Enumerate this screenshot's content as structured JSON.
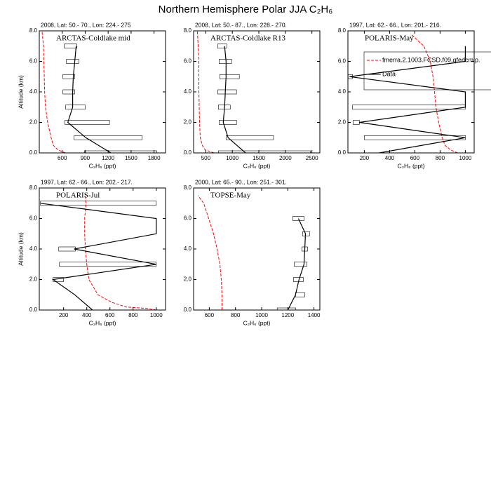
{
  "title": "Northern Hemisphere Polar JJA C₂H₆",
  "chart_data": [
    {
      "type": "line",
      "subtitle": "2008, Lat:  50.- 70., Lon: 224.- 275",
      "annotation": "ARCTAS-Coldlake mid",
      "xlabel": "C₂H₆ (ppt)",
      "ylabel": "Altitude (km)",
      "xlim": [
        300,
        1950
      ],
      "xticks": [
        600,
        900,
        1200,
        1500,
        1800
      ],
      "ylim": [
        0,
        8
      ],
      "yticks": [
        {
          "value": 0,
          "label": "0.0"
        },
        {
          "value": 2,
          "label": "2.0"
        },
        {
          "value": 4,
          "label": "4.0"
        },
        {
          "value": 6,
          "label": "6.0"
        },
        {
          "value": 8,
          "label": "8.0"
        }
      ],
      "series": [
        {
          "color": "#ff0000",
          "dash": true,
          "x": [
            645,
            545,
            482,
            455,
            409,
            382,
            370,
            365,
            360,
            355,
            336
          ],
          "y": [
            0,
            0.2,
            0.5,
            1,
            2,
            3,
            4,
            5,
            6,
            7,
            8
          ]
        },
        {
          "color": "#000000",
          "x": [
            1236,
            909,
            673,
            736,
            736,
            745,
            764,
            782
          ],
          "y": [
            0,
            1,
            2,
            3,
            4,
            5,
            6,
            7
          ],
          "low": [
            891,
            755,
            636,
            645,
            609,
            609,
            655,
            627
          ],
          "high": [
            1836,
            1645,
            1218,
            900,
            764,
            764,
            818,
            791
          ]
        }
      ]
    },
    {
      "type": "line",
      "subtitle": "2008, Lat:  50.- 87., Lon: 228.- 270.",
      "annotation": "ARCTAS-Coldlake R13",
      "xlabel": "C₂H₆ (ppt)",
      "xlim": [
        270,
        2650
      ],
      "xticks": [
        500,
        1000,
        1500,
        2000,
        2500
      ],
      "ylim": [
        0,
        8
      ],
      "yticks": [
        {
          "value": 0,
          "label": "0.0"
        },
        {
          "value": 2,
          "label": "2.0"
        },
        {
          "value": 4,
          "label": "4.0"
        },
        {
          "value": 6,
          "label": "6.0"
        },
        {
          "value": 8,
          "label": "8.0"
        }
      ],
      "series": [
        {
          "color": "#ff0000",
          "dash": true,
          "x": [
            658,
            487,
            434,
            395,
            382,
            369,
            369,
            356,
            342
          ],
          "y": [
            0,
            0.2,
            0.5,
            1,
            2,
            4,
            6,
            7,
            8
          ]
        },
        {
          "color": "#000000",
          "x": [
            1250,
            921,
            829,
            855,
            868,
            882,
            882,
            855
          ],
          "y": [
            0,
            1,
            2,
            3,
            4,
            5,
            6,
            7
          ],
          "low": [
            737,
            882,
            750,
            737,
            724,
            763,
            750,
            724
          ],
          "high": [
            2474,
            1777,
            1079,
            961,
            1079,
            1132,
            987,
            895
          ]
        }
      ]
    },
    {
      "type": "line",
      "subtitle": "1997, Lat: 62.- 66., Lon: 201.- 216.",
      "annotation": "POLARIS-May",
      "xlabel": "C₂H₆ (ppt)",
      "xlim": [
        70,
        1070
      ],
      "xticks": [
        200,
        400,
        600,
        800,
        1000
      ],
      "ylim": [
        0,
        8
      ],
      "yticks": [
        {
          "value": 0,
          "label": "0.0"
        },
        {
          "value": 2,
          "label": "2.0"
        },
        {
          "value": 4,
          "label": "4.0"
        },
        {
          "value": 6,
          "label": "6.0"
        },
        {
          "value": 8,
          "label": "8.0"
        }
      ],
      "legend": "upper right",
      "series": [
        {
          "name": "fmerra.2.1003.FCSD.f09.qfedcmip.",
          "color": "#ff0000",
          "dash": true,
          "x": [
            939,
            883,
            839,
            817,
            789,
            767,
            756,
            744,
            722,
            672,
            567
          ],
          "y": [
            0,
            0.2,
            0.5,
            1,
            2,
            3,
            4,
            5,
            6,
            7,
            7.8
          ]
        },
        {
          "name": "Data",
          "color": "#000000",
          "x": [
            317,
            1000,
            161,
            1000,
            1000,
            83,
            1000,
            1000
          ],
          "y": [
            0,
            1,
            2,
            3,
            4,
            5,
            6,
            7
          ],
          "low": [
            null,
            200,
            111,
            106,
            null,
            72,
            null,
            null
          ],
          "high": [
            null,
            1000,
            161,
            1000,
            null,
            106,
            null,
            null
          ]
        }
      ]
    },
    {
      "type": "line",
      "subtitle": "1997, Lat: 62.- 66., Lon: 202.- 217.",
      "annotation": "POLARIS-Jul",
      "xlabel": "C₂H₆ (ppt)",
      "ylabel": "Altitude (km)",
      "xlim": [
        -10,
        1080
      ],
      "xticks": [
        200,
        400,
        600,
        800,
        1000
      ],
      "ylim": [
        0,
        8
      ],
      "yticks": [
        {
          "value": 0,
          "label": "0.0"
        },
        {
          "value": 2,
          "label": "2.0"
        },
        {
          "value": 4,
          "label": "4.0"
        },
        {
          "value": 6,
          "label": "6.0"
        },
        {
          "value": 8,
          "label": "8.0"
        }
      ],
      "series": [
        {
          "color": "#ff0000",
          "dash": true,
          "x": [
            1000,
            921,
            739,
            618,
            497,
            418,
            400,
            388,
            382,
            382,
            394,
            388
          ],
          "y": [
            0,
            0.1,
            0.2,
            0.5,
            1,
            2,
            3,
            4,
            5,
            6,
            7,
            7.5
          ]
        },
        {
          "color": "#000000",
          "x": [
            449,
            297,
            109,
            1000,
            291,
            1000,
            1000,
            0
          ],
          "y": [
            0,
            1,
            2,
            3,
            4,
            5,
            6,
            7
          ],
          "low": [
            null,
            null,
            109,
            164,
            158,
            null,
            null,
            0
          ],
          "high": [
            null,
            null,
            200,
            1000,
            303,
            null,
            null,
            1000
          ]
        }
      ]
    },
    {
      "type": "line",
      "subtitle": "2000, Lat: 65.- 90., Lon: 251.- 301.",
      "annotation": "TOPSE-May",
      "xlabel": "C₂H₆ (ppt)",
      "xlim": [
        480,
        1445
      ],
      "xticks": [
        600,
        800,
        1000,
        1200,
        1400
      ],
      "ylim": [
        0,
        8
      ],
      "yticks": [
        {
          "value": 0,
          "label": "0.0"
        },
        {
          "value": 2,
          "label": "2.0"
        },
        {
          "value": 4,
          "label": "4.0"
        },
        {
          "value": 6,
          "label": "6.0"
        },
        {
          "value": 8,
          "label": "8.0"
        }
      ],
      "series": [
        {
          "color": "#ff0000",
          "dash": true,
          "x": [
            697,
            697,
            692,
            681,
            659,
            632,
            595,
            557,
            514
          ],
          "y": [
            0,
            1,
            2,
            3,
            4,
            5,
            6,
            7,
            7.5
          ]
        },
        {
          "color": "#000000",
          "x": [
            1200,
            1259,
            1286,
            1324,
            1330,
            1335,
            1281
          ],
          "y": [
            0,
            1,
            2,
            3,
            4,
            5,
            6
          ],
          "low": [
            1119,
            1259,
            1243,
            1249,
            1308,
            1313,
            1238
          ],
          "high": [
            1259,
            1330,
            1319,
            1346,
            1351,
            1367,
            1324
          ]
        }
      ]
    }
  ]
}
